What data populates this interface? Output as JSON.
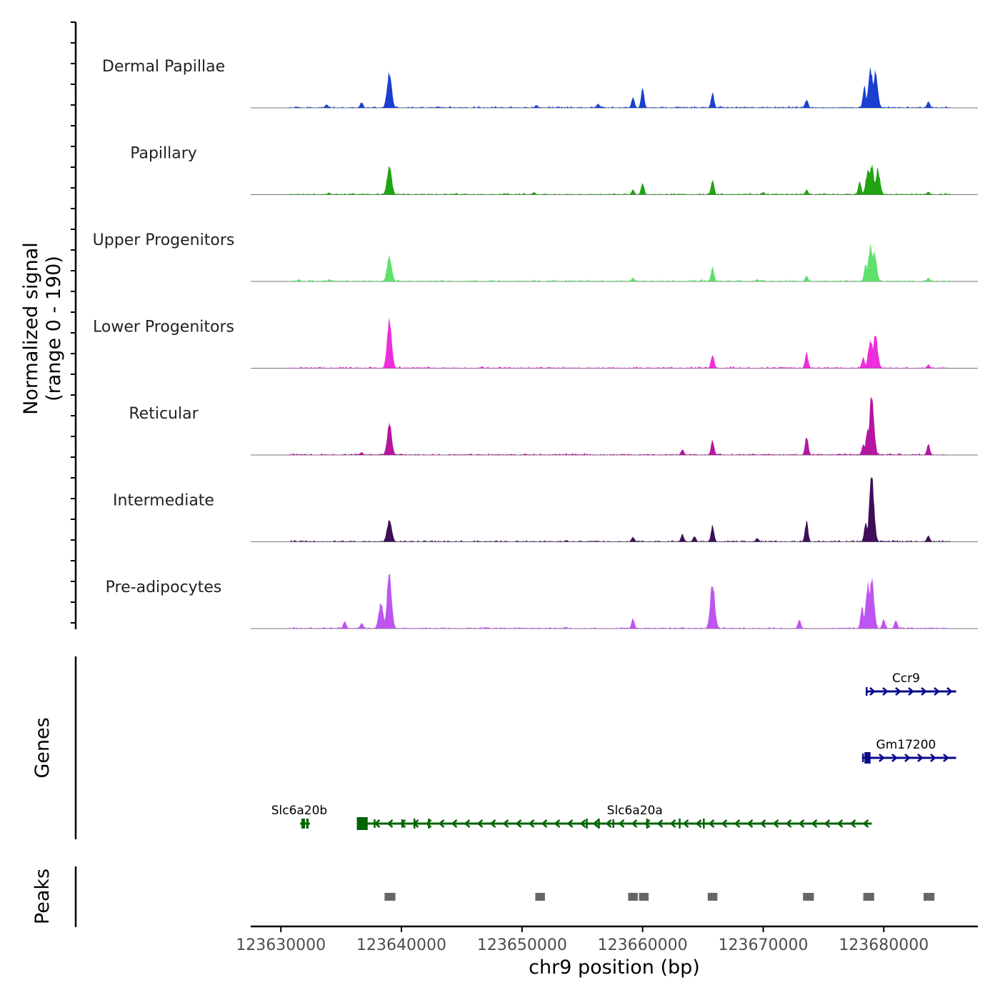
{
  "chart_data": {
    "type": "area",
    "title": "",
    "y_axis_label_line1": "Normalized signal",
    "y_axis_label_line2": "(range 0 - 190)",
    "xlabel": "chr9 position (bp)",
    "xlim": [
      123627500,
      123687800
    ],
    "ylim": [
      0,
      190
    ],
    "x_ticks": [
      {
        "value": 123630000,
        "label": "123630000"
      },
      {
        "value": 123640000,
        "label": "123640000"
      },
      {
        "value": 123650000,
        "label": "123650000"
      },
      {
        "value": 123660000,
        "label": "123660000"
      },
      {
        "value": 123670000,
        "label": "123670000"
      },
      {
        "value": 123680000,
        "label": "123680000"
      }
    ],
    "tracks": [
      {
        "name": "Dermal Papillae",
        "color": "#1a3fd1",
        "peaks": [
          [
            123633800,
            10
          ],
          [
            123636700,
            16
          ],
          [
            123639000,
            102
          ],
          [
            123651200,
            8
          ],
          [
            123656300,
            12
          ],
          [
            123659200,
            30
          ],
          [
            123660000,
            52
          ],
          [
            123665800,
            42
          ],
          [
            123673600,
            24
          ],
          [
            123678400,
            60
          ],
          [
            123678900,
            110
          ],
          [
            123679300,
            100
          ],
          [
            123683700,
            18
          ]
        ]
      },
      {
        "name": "Papillary",
        "color": "#22a312",
        "peaks": [
          [
            123634000,
            6
          ],
          [
            123639000,
            80
          ],
          [
            123651000,
            7
          ],
          [
            123659200,
            14
          ],
          [
            123660000,
            34
          ],
          [
            123665800,
            40
          ],
          [
            123670000,
            7
          ],
          [
            123673600,
            14
          ],
          [
            123678000,
            38
          ],
          [
            123678700,
            70
          ],
          [
            123679000,
            80
          ],
          [
            123679500,
            70
          ],
          [
            123683700,
            8
          ]
        ]
      },
      {
        "name": "Upper Progenitors",
        "color": "#5ee06a",
        "peaks": [
          [
            123631500,
            6
          ],
          [
            123634000,
            6
          ],
          [
            123639000,
            70
          ],
          [
            123659200,
            10
          ],
          [
            123665800,
            40
          ],
          [
            123669500,
            6
          ],
          [
            123673600,
            16
          ],
          [
            123678500,
            50
          ],
          [
            123678900,
            100
          ],
          [
            123679200,
            90
          ],
          [
            123683700,
            10
          ]
        ]
      },
      {
        "name": "Lower Progenitors",
        "color": "#ee2ddb",
        "peaks": [
          [
            123639000,
            135
          ],
          [
            123665800,
            40
          ],
          [
            123673600,
            45
          ],
          [
            123678300,
            30
          ],
          [
            123678900,
            80
          ],
          [
            123679300,
            95
          ],
          [
            123683700,
            10
          ]
        ]
      },
      {
        "name": "Reticular",
        "color": "#b5169f",
        "peaks": [
          [
            123636700,
            8
          ],
          [
            123639000,
            88
          ],
          [
            123663300,
            16
          ],
          [
            123665800,
            42
          ],
          [
            123673600,
            55
          ],
          [
            123678300,
            30
          ],
          [
            123678700,
            70
          ],
          [
            123679000,
            170
          ],
          [
            123683700,
            30
          ]
        ]
      },
      {
        "name": "Intermediate",
        "color": "#3e0e58",
        "peaks": [
          [
            123639000,
            65
          ],
          [
            123659200,
            14
          ],
          [
            123663300,
            22
          ],
          [
            123664300,
            16
          ],
          [
            123665800,
            46
          ],
          [
            123669500,
            10
          ],
          [
            123673600,
            58
          ],
          [
            123678500,
            55
          ],
          [
            123679000,
            190
          ],
          [
            123683700,
            18
          ]
        ]
      },
      {
        "name": "Pre-adipocytes",
        "color": "#be55f0",
        "peaks": [
          [
            123635300,
            20
          ],
          [
            123636700,
            16
          ],
          [
            123638300,
            70
          ],
          [
            123639000,
            160
          ],
          [
            123659200,
            28
          ],
          [
            123665800,
            130
          ],
          [
            123673000,
            24
          ],
          [
            123678200,
            60
          ],
          [
            123678700,
            130
          ],
          [
            123679000,
            140
          ],
          [
            123680000,
            26
          ],
          [
            123681000,
            24
          ]
        ]
      }
    ],
    "genes_label": "Genes",
    "genes": [
      {
        "name": "Ccr9",
        "start": 123678500,
        "end": 123686000,
        "strand": "+",
        "color": "#0a0a8c",
        "row": 0
      },
      {
        "name": "Gm17200",
        "start": 123678200,
        "end": 123686000,
        "strand": "+",
        "color": "#0a0a8c",
        "row": 1
      },
      {
        "name": "Slc6a20b",
        "start": 123631600,
        "end": 123632400,
        "strand": "-",
        "color": "#006400",
        "row": 2
      },
      {
        "name": "Slc6a20a",
        "start": 123636300,
        "end": 123679000,
        "strand": "-",
        "color": "#006400",
        "row": 2
      }
    ],
    "peaks_label": "Peaks",
    "peak_regions": [
      [
        123638600,
        123639500
      ],
      [
        123651100,
        123651900
      ],
      [
        123658800,
        123659600
      ],
      [
        123659700,
        123660500
      ],
      [
        123665400,
        123666200
      ],
      [
        123673300,
        123674200
      ],
      [
        123678300,
        123679200
      ],
      [
        123683300,
        123684200
      ]
    ]
  }
}
